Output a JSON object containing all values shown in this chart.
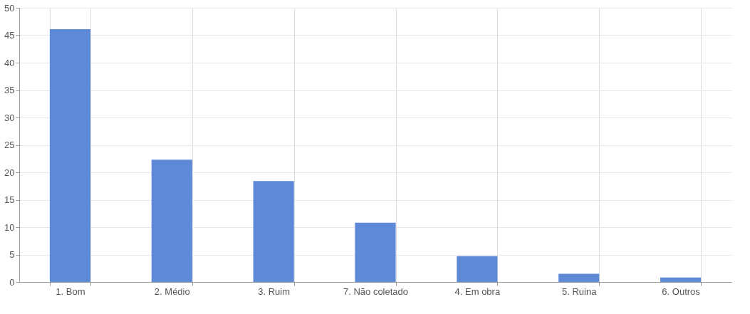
{
  "chart_data": {
    "type": "bar",
    "categories": [
      "1. Bom",
      "2. Médio",
      "3. Ruim",
      "7. Não coletado",
      "4. Em obra",
      "5. Ruina",
      "6. Outros"
    ],
    "values": [
      46.1,
      22.3,
      18.4,
      10.8,
      4.7,
      1.5,
      0.8
    ],
    "color": "#5b87d6",
    "ylim": [
      0,
      50
    ],
    "yticks": [
      0,
      5,
      10,
      15,
      20,
      25,
      30,
      35,
      40,
      45,
      50
    ],
    "grid": true
  }
}
